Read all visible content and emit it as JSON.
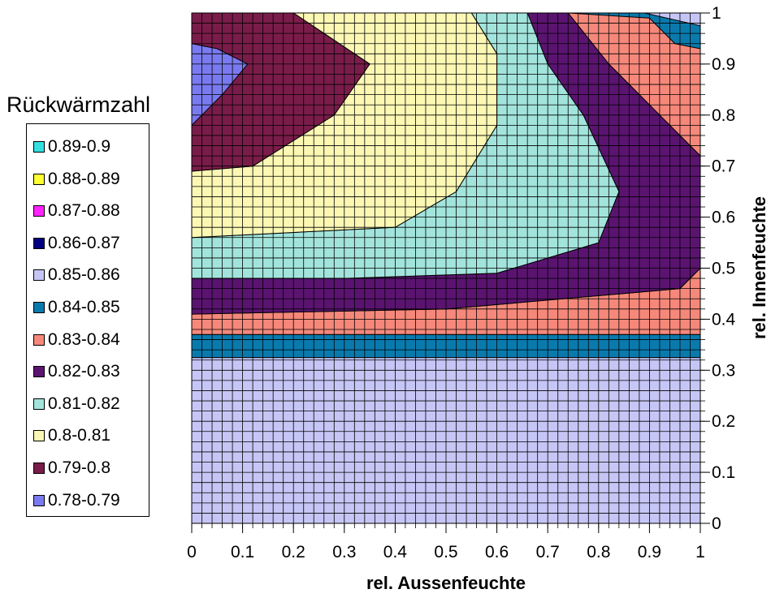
{
  "chart_data": {
    "type": "contour",
    "title": "",
    "xlabel": "rel. Aussenfeuchte",
    "ylabel": "rel. Innenfeuchte",
    "xlim": [
      0,
      1
    ],
    "ylim": [
      0,
      1
    ],
    "x_ticks": [
      "0",
      "0.1",
      "0.2",
      "0.3",
      "0.4",
      "0.5",
      "0.6",
      "0.7",
      "0.8",
      "0.9",
      "1"
    ],
    "y_ticks": [
      "0",
      "0.1",
      "0.2",
      "0.3",
      "0.4",
      "0.5",
      "0.6",
      "0.7",
      "0.8",
      "0.9",
      "1"
    ],
    "grid": true,
    "legend": {
      "title": "Rückwärmzahl",
      "position": "left",
      "entries": [
        {
          "label": "0.89-0.9",
          "color": "#33e0e0"
        },
        {
          "label": "0.88-0.89",
          "color": "#ffff33"
        },
        {
          "label": "0.87-0.88",
          "color": "#ff22ff"
        },
        {
          "label": "0.86-0.87",
          "color": "#000080"
        },
        {
          "label": "0.85-0.86",
          "color": "#c6c6f6"
        },
        {
          "label": "0.84-0.85",
          "color": "#0a7aad"
        },
        {
          "label": "0.83-0.84",
          "color": "#f5887a"
        },
        {
          "label": "0.82-0.83",
          "color": "#5a1470"
        },
        {
          "label": "0.81-0.82",
          "color": "#a2e4dc"
        },
        {
          "label": "0.8-0.81",
          "color": "#fcf8b4"
        },
        {
          "label": "0.79-0.8",
          "color": "#7a1c4a"
        },
        {
          "label": "0.78-0.79",
          "color": "#7a7af0"
        }
      ]
    },
    "regions": [
      {
        "range": "0.85-0.86",
        "polygon": [
          [
            0,
            0
          ],
          [
            1,
            0
          ],
          [
            1,
            0.325
          ],
          [
            0,
            0.325
          ]
        ]
      },
      {
        "range": "0.84-0.85",
        "polygon": [
          [
            0,
            0.325
          ],
          [
            1,
            0.325
          ],
          [
            1,
            0.37
          ],
          [
            0,
            0.37
          ]
        ]
      },
      {
        "range": "0.83-0.84",
        "polygon": [
          [
            0,
            0.37
          ],
          [
            1,
            0.37
          ],
          [
            1,
            0.5
          ],
          [
            0.96,
            0.46
          ],
          [
            0.5,
            0.42
          ],
          [
            0,
            0.41
          ]
        ]
      },
      {
        "range": "0.83-0.84",
        "polygon": [
          [
            0.74,
            1
          ],
          [
            1,
            1
          ],
          [
            1,
            0.72
          ],
          [
            0.92,
            0.8
          ],
          [
            0.82,
            0.9
          ]
        ]
      },
      {
        "range": "0.84-0.85",
        "polygon": [
          [
            0.72,
            1
          ],
          [
            1,
            1
          ],
          [
            1,
            0.93
          ],
          [
            0.95,
            0.94
          ],
          [
            0.9,
            0.99
          ],
          [
            0.74,
            1
          ]
        ]
      },
      {
        "range": "0.85-0.86",
        "polygon": [
          [
            0.89,
            1
          ],
          [
            1,
            1
          ],
          [
            1,
            0.975
          ]
        ]
      },
      {
        "range": "0.82-0.83",
        "polygon": [
          [
            0,
            0.41
          ],
          [
            0.5,
            0.42
          ],
          [
            0.96,
            0.46
          ],
          [
            1,
            0.5
          ],
          [
            1,
            0.72
          ],
          [
            0.92,
            0.8
          ],
          [
            0.82,
            0.9
          ],
          [
            0.74,
            1
          ],
          [
            0.66,
            1
          ],
          [
            0.7,
            0.9
          ],
          [
            0.77,
            0.8
          ],
          [
            0.84,
            0.65
          ],
          [
            0.8,
            0.55
          ],
          [
            0.6,
            0.49
          ],
          [
            0.3,
            0.48
          ],
          [
            0,
            0.48
          ]
        ]
      },
      {
        "range": "0.81-0.82",
        "polygon": [
          [
            0,
            0.48
          ],
          [
            0.3,
            0.48
          ],
          [
            0.6,
            0.49
          ],
          [
            0.8,
            0.55
          ],
          [
            0.84,
            0.65
          ],
          [
            0.77,
            0.8
          ],
          [
            0.7,
            0.9
          ],
          [
            0.66,
            1
          ],
          [
            0.55,
            1
          ],
          [
            0.6,
            0.92
          ],
          [
            0.6,
            0.78
          ],
          [
            0.52,
            0.65
          ],
          [
            0.4,
            0.58
          ],
          [
            0.2,
            0.57
          ],
          [
            0,
            0.56
          ]
        ]
      },
      {
        "range": "0.8-0.81",
        "polygon": [
          [
            0,
            0.56
          ],
          [
            0.2,
            0.57
          ],
          [
            0.4,
            0.58
          ],
          [
            0.52,
            0.65
          ],
          [
            0.6,
            0.78
          ],
          [
            0.6,
            0.92
          ],
          [
            0.55,
            1
          ],
          [
            0.2,
            1
          ],
          [
            0.35,
            0.9
          ],
          [
            0.28,
            0.8
          ],
          [
            0.12,
            0.7
          ],
          [
            0,
            0.69
          ]
        ]
      },
      {
        "range": "0.79-0.8",
        "polygon": [
          [
            0,
            0.69
          ],
          [
            0.12,
            0.7
          ],
          [
            0.28,
            0.8
          ],
          [
            0.35,
            0.9
          ],
          [
            0.2,
            1
          ],
          [
            0,
            1
          ]
        ]
      },
      {
        "range": "0.78-0.79",
        "polygon": [
          [
            0,
            0.78
          ],
          [
            0.06,
            0.84
          ],
          [
            0.11,
            0.9
          ],
          [
            0.05,
            0.93
          ],
          [
            0,
            0.94
          ]
        ]
      }
    ]
  }
}
